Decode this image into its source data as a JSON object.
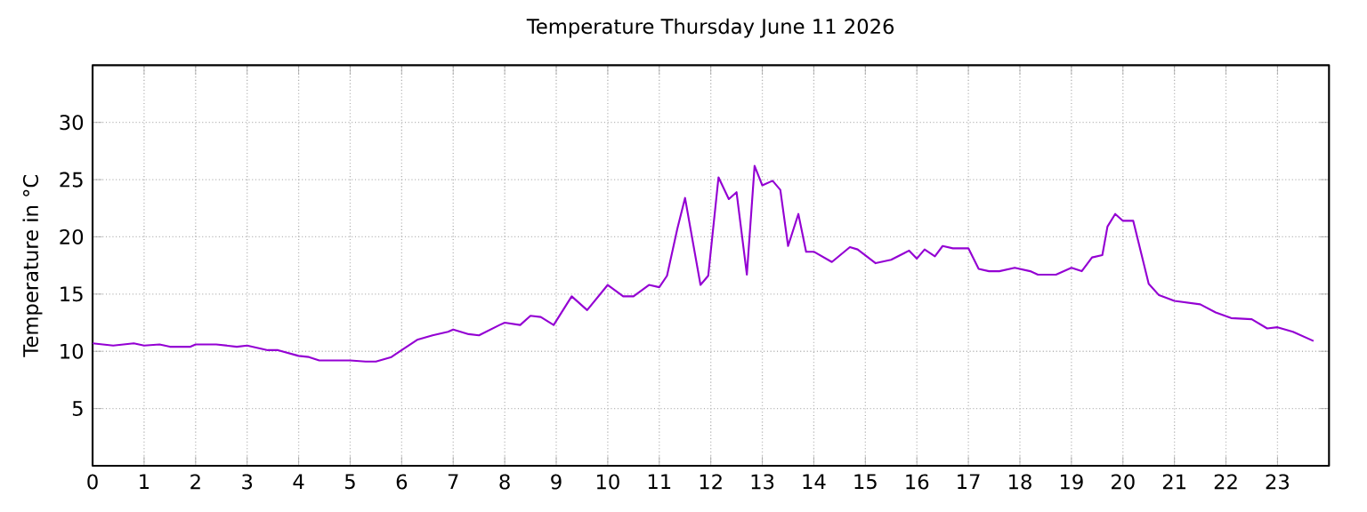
{
  "chart_data": {
    "type": "line",
    "title": "Temperature Thursday June 11 2026",
    "ylabel": "Temperature in °C",
    "xlim": [
      0,
      24
    ],
    "ylim": [
      0,
      35
    ],
    "xticks": [
      0,
      1,
      2,
      3,
      4,
      5,
      6,
      7,
      8,
      9,
      10,
      11,
      12,
      13,
      14,
      15,
      16,
      17,
      18,
      19,
      20,
      21,
      22,
      23
    ],
    "yticks": [
      5,
      10,
      15,
      20,
      25,
      30
    ],
    "grid": true,
    "legend": false,
    "marker": "none",
    "line_style": "solid",
    "series": [
      {
        "color": "#9400d3",
        "x": [
          0,
          0.4,
          0.8,
          1.0,
          1.3,
          1.5,
          1.9,
          2.0,
          2.4,
          2.8,
          3.0,
          3.4,
          3.6,
          4.0,
          4.2,
          4.4,
          4.8,
          5.0,
          5.3,
          5.5,
          5.8,
          6.0,
          6.3,
          6.6,
          6.9,
          7.0,
          7.3,
          7.5,
          7.9,
          8.0,
          8.3,
          8.5,
          8.7,
          8.95,
          9.3,
          9.6,
          10.0,
          10.3,
          10.5,
          10.8,
          11.0,
          11.15,
          11.35,
          11.5,
          11.8,
          11.95,
          12.15,
          12.35,
          12.5,
          12.7,
          12.85,
          13.0,
          13.2,
          13.35,
          13.5,
          13.7,
          13.85,
          14.0,
          14.35,
          14.7,
          14.85,
          15.2,
          15.5,
          15.85,
          16.0,
          16.15,
          16.35,
          16.5,
          16.7,
          17.0,
          17.2,
          17.4,
          17.6,
          17.9,
          18.2,
          18.35,
          18.7,
          19.0,
          19.2,
          19.4,
          19.6,
          19.7,
          19.85,
          20.0,
          20.2,
          20.5,
          20.7,
          21.0,
          21.5,
          21.8,
          22.1,
          22.5,
          22.8,
          23.0,
          23.3,
          23.7
        ],
        "values": [
          10.7,
          10.5,
          10.7,
          10.5,
          10.6,
          10.4,
          10.4,
          10.6,
          10.6,
          10.4,
          10.5,
          10.1,
          10.1,
          9.6,
          9.5,
          9.2,
          9.2,
          9.2,
          9.1,
          9.1,
          9.5,
          10.1,
          11.0,
          11.4,
          11.7,
          11.9,
          11.5,
          11.4,
          12.3,
          12.5,
          12.3,
          13.1,
          13.0,
          12.3,
          14.8,
          13.6,
          15.8,
          14.8,
          14.8,
          15.8,
          15.6,
          16.6,
          20.7,
          23.4,
          15.8,
          16.6,
          25.2,
          23.3,
          23.9,
          16.7,
          26.2,
          24.5,
          24.9,
          24.1,
          19.2,
          22.0,
          18.7,
          18.7,
          17.8,
          19.1,
          18.9,
          17.7,
          18.0,
          18.8,
          18.1,
          18.9,
          18.3,
          19.2,
          19.0,
          19.0,
          17.2,
          17.0,
          17.0,
          17.3,
          17.0,
          16.7,
          16.7,
          17.3,
          17.0,
          18.2,
          18.4,
          20.9,
          22.0,
          21.4,
          21.4,
          15.9,
          14.9,
          14.4,
          14.1,
          13.4,
          12.9,
          12.8,
          12.0,
          12.1,
          11.7,
          10.9
        ]
      }
    ]
  }
}
